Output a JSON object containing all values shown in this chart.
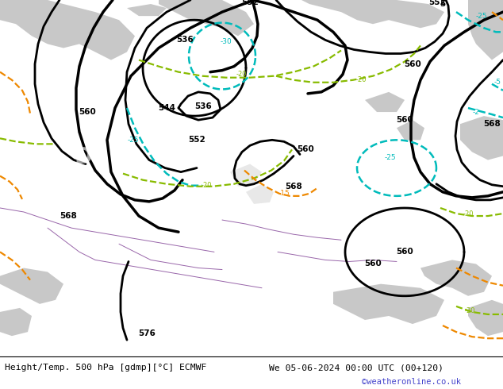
{
  "title_left": "Height/Temp. 500 hPa [gdmp][°C] ECMWF",
  "title_right": "We 05-06-2024 00:00 UTC (00+120)",
  "credit": "©weatheronline.co.uk",
  "bg_green": "#c8e8a0",
  "land_gray": "#c8c8c8",
  "sea_gray": "#d8d8d8",
  "contour_black": "#000000",
  "contour_cyan": "#00bbbb",
  "contour_green": "#88bb00",
  "contour_orange": "#ee8800",
  "contour_purple": "#9966aa",
  "fig_bg": "#ffffff",
  "credit_color": "#4444cc"
}
